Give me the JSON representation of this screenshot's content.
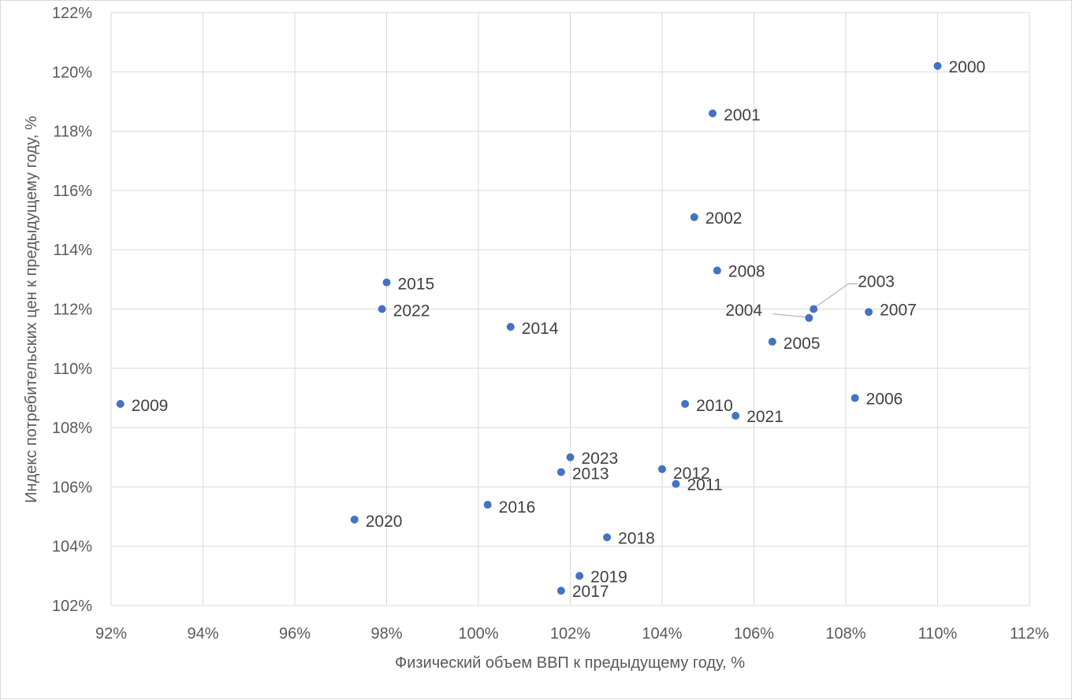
{
  "chart_data": {
    "type": "scatter",
    "xlabel": "Физический объем ВВП к предыдущему году, %",
    "ylabel": "Индекс потребительских цен к предыдущему году, %",
    "xlim": [
      92,
      112
    ],
    "ylim": [
      102,
      122
    ],
    "x_ticks": [
      92,
      94,
      96,
      98,
      100,
      102,
      104,
      106,
      108,
      110,
      112
    ],
    "y_ticks": [
      102,
      104,
      106,
      108,
      110,
      112,
      114,
      116,
      118,
      120,
      122
    ],
    "x_tick_labels": [
      "92%",
      "94%",
      "96%",
      "98%",
      "100%",
      "102%",
      "104%",
      "106%",
      "108%",
      "110%",
      "112%"
    ],
    "y_tick_labels": [
      "102%",
      "104%",
      "106%",
      "108%",
      "110%",
      "112%",
      "114%",
      "116%",
      "118%",
      "120%",
      "122%"
    ],
    "grid": true,
    "marker_color": "#4472c4",
    "points": [
      {
        "label": "2000",
        "x": 110.0,
        "y": 120.2
      },
      {
        "label": "2001",
        "x": 105.1,
        "y": 118.6
      },
      {
        "label": "2002",
        "x": 104.7,
        "y": 115.1
      },
      {
        "label": "2003",
        "x": 107.3,
        "y": 112.0
      },
      {
        "label": "2004",
        "x": 107.2,
        "y": 111.7
      },
      {
        "label": "2005",
        "x": 106.4,
        "y": 110.9
      },
      {
        "label": "2006",
        "x": 108.2,
        "y": 109.0
      },
      {
        "label": "2007",
        "x": 108.5,
        "y": 111.9
      },
      {
        "label": "2008",
        "x": 105.2,
        "y": 113.3
      },
      {
        "label": "2009",
        "x": 92.2,
        "y": 108.8
      },
      {
        "label": "2010",
        "x": 104.5,
        "y": 108.8
      },
      {
        "label": "2011",
        "x": 104.3,
        "y": 106.1
      },
      {
        "label": "2012",
        "x": 104.0,
        "y": 106.6
      },
      {
        "label": "2013",
        "x": 101.8,
        "y": 106.5
      },
      {
        "label": "2014",
        "x": 100.7,
        "y": 111.4
      },
      {
        "label": "2015",
        "x": 98.0,
        "y": 112.9
      },
      {
        "label": "2016",
        "x": 100.2,
        "y": 105.4
      },
      {
        "label": "2017",
        "x": 101.8,
        "y": 102.5
      },
      {
        "label": "2018",
        "x": 102.8,
        "y": 104.3
      },
      {
        "label": "2019",
        "x": 102.2,
        "y": 103.0
      },
      {
        "label": "2020",
        "x": 97.3,
        "y": 104.9
      },
      {
        "label": "2021",
        "x": 105.6,
        "y": 108.4
      },
      {
        "label": "2022",
        "x": 97.9,
        "y": 112.0
      },
      {
        "label": "2023",
        "x": 102.0,
        "y": 107.0
      }
    ]
  }
}
